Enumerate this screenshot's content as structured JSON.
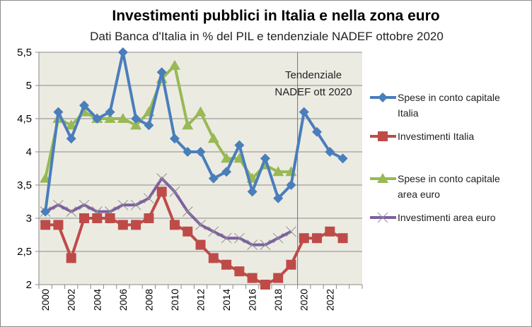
{
  "chart_data": {
    "type": "line",
    "title": "Investimenti pubblici in Italia e nella zona euro",
    "subtitle": "Dati Banca d'Italia in % del PIL e tendenziale NADEF ottobre 2020",
    "xlabel": "",
    "ylabel": "",
    "x": [
      2000,
      2001,
      2002,
      2003,
      2004,
      2005,
      2006,
      2007,
      2008,
      2009,
      2010,
      2011,
      2012,
      2013,
      2014,
      2015,
      2016,
      2017,
      2018,
      2019,
      2020,
      2021,
      2022,
      2023,
      2024
    ],
    "x_tick_labels": [
      "2000",
      "2002",
      "2004",
      "2006",
      "2008",
      "2010",
      "2012",
      "2014",
      "2016",
      "2018",
      "2020",
      "2022"
    ],
    "y_tick_labels": [
      "5,5",
      "5",
      "4,5",
      "4",
      "3,5",
      "3",
      "2,5",
      "2"
    ],
    "y_ticks": [
      5.5,
      5,
      4.5,
      4,
      3.5,
      3,
      2.5,
      2
    ],
    "ylim": [
      2,
      5.5
    ],
    "grid": "horizontal",
    "legend_position": "right",
    "annotation": {
      "line1": "Tendenziale",
      "line2": "NADEF ott 2020",
      "vertical_line_between": [
        2019,
        2020
      ]
    },
    "series": [
      {
        "name": "Spese in conto capitale Italia",
        "legend_line1": "Spese in conto capitale",
        "legend_line2": "Italia",
        "color": "#4a7ebb",
        "marker": "diamond",
        "values": [
          3.1,
          4.6,
          4.2,
          4.7,
          4.5,
          4.6,
          5.5,
          4.5,
          4.4,
          5.2,
          4.2,
          4.0,
          4.0,
          3.6,
          3.7,
          4.1,
          3.4,
          3.9,
          3.3,
          3.5,
          4.6,
          4.3,
          4.0,
          3.9,
          null
        ]
      },
      {
        "name": "Investimenti Italia",
        "legend_line1": "Investimenti Italia",
        "legend_line2": "",
        "color": "#be4b48",
        "marker": "square",
        "values": [
          2.9,
          2.9,
          2.4,
          3.0,
          3.0,
          3.0,
          2.9,
          2.9,
          3.0,
          3.4,
          2.9,
          2.8,
          2.6,
          2.4,
          2.3,
          2.2,
          2.1,
          2.0,
          2.1,
          2.3,
          2.7,
          2.7,
          2.8,
          2.7,
          null
        ]
      },
      {
        "name": "Spese in conto capitale area euro",
        "legend_line1": "Spese in conto capitale",
        "legend_line2": "area euro",
        "color": "#98b954",
        "marker": "triangle",
        "values": [
          3.6,
          4.5,
          4.4,
          4.6,
          4.5,
          4.5,
          4.5,
          4.4,
          4.6,
          5.1,
          5.3,
          4.4,
          4.6,
          4.2,
          3.9,
          3.9,
          3.6,
          3.8,
          3.7,
          3.7,
          null,
          null,
          null,
          null,
          null
        ]
      },
      {
        "name": "Investimenti area euro",
        "legend_line1": "Investimenti area euro",
        "legend_line2": "",
        "color": "#7d5fa0",
        "marker": "x",
        "values": [
          3.1,
          3.2,
          3.1,
          3.2,
          3.1,
          3.1,
          3.2,
          3.2,
          3.3,
          3.6,
          3.4,
          3.1,
          2.9,
          2.8,
          2.7,
          2.7,
          2.6,
          2.6,
          2.7,
          2.8,
          null,
          null,
          null,
          null,
          null
        ]
      }
    ]
  },
  "colors": {
    "plot_background": "#ecebe2",
    "gridline": "#8a8a8a",
    "axis": "#8a8a8a",
    "forecast_line": "#4a7ebb"
  }
}
